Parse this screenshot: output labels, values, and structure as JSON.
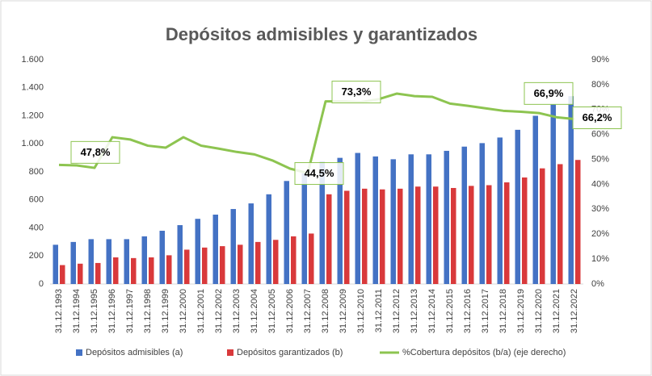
{
  "chart_data": {
    "type": "bar-line",
    "title": "Depósitos admisibles y garantizados",
    "categories": [
      "31.12.1993",
      "31.12.1994",
      "31.12.1995",
      "31.12.1996",
      "31.12.1997",
      "31.12.1998",
      "31.12.1999",
      "31.12.2000",
      "31.12.2001",
      "31.12.2002",
      "31.12.2003",
      "31.12.2004",
      "31.12.2005",
      "31.12.2006",
      "31.12.2007",
      "31.12.2008",
      "31.12.2009",
      "31.12.2010",
      "31.12.2011",
      "31.12.2012",
      "31.12.2013",
      "31.12.2014",
      "31.12.2015",
      "31.12.2016",
      "31.12.2017",
      "31.12.2018",
      "31.12.2019",
      "31.12.2020",
      "31.12.2021",
      "31.12.2022"
    ],
    "series": [
      {
        "name": "Depósitos admisibles (a)",
        "color": "#4472c4",
        "type": "bar",
        "values": [
          280,
          300,
          320,
          320,
          320,
          340,
          380,
          420,
          465,
          495,
          535,
          575,
          640,
          735,
          790,
          870,
          900,
          935,
          910,
          890,
          925,
          925,
          950,
          980,
          1005,
          1045,
          1100,
          1200,
          1280,
          1340
        ]
      },
      {
        "name": "Depósitos garantizados (b)",
        "color": "#d9393b",
        "type": "bar",
        "values": [
          135,
          145,
          150,
          190,
          185,
          190,
          205,
          245,
          260,
          270,
          280,
          300,
          315,
          340,
          360,
          640,
          665,
          680,
          675,
          680,
          695,
          695,
          685,
          700,
          705,
          725,
          760,
          825,
          855,
          885
        ]
      },
      {
        "name": "%Cobertura depósitos (b/a) (eje derecho)",
        "color": "#8dc450",
        "type": "line",
        "axis": "y2",
        "values": [
          47.8,
          47.6,
          46.6,
          58.9,
          58.0,
          55.5,
          54.7,
          58.9,
          55.5,
          54.3,
          53.0,
          52.0,
          49.6,
          46.3,
          44.5,
          73.3,
          73.3,
          73.0,
          74.2,
          76.4,
          75.4,
          75.1,
          72.4,
          71.5,
          70.5,
          69.5,
          69.1,
          68.6,
          66.9,
          66.2
        ],
        "value_labels": [
          "47,8%",
          null,
          null,
          null,
          null,
          null,
          null,
          null,
          null,
          null,
          null,
          null,
          null,
          null,
          "44,5%",
          "73,3%",
          null,
          null,
          null,
          null,
          null,
          null,
          null,
          null,
          null,
          null,
          null,
          null,
          "66,9%",
          "66,2%"
        ]
      }
    ],
    "ylim": [
      0,
      1600
    ],
    "yticks": [
      0,
      200,
      400,
      600,
      800,
      {
        "value": 1000,
        "label": "1.000"
      },
      {
        "value": 1200,
        "label": "1.200"
      },
      {
        "value": 1400,
        "label": "1.400"
      },
      {
        "value": 1600,
        "label": "1.600"
      }
    ],
    "y2lim": [
      0,
      90
    ],
    "y2ticks": [
      {
        "value": 0,
        "label": "0%"
      },
      {
        "value": 10,
        "label": "10%"
      },
      {
        "value": 20,
        "label": "20%"
      },
      {
        "value": 30,
        "label": "30%"
      },
      {
        "value": 40,
        "label": "40%"
      },
      {
        "value": 50,
        "label": "50%"
      },
      {
        "value": 60,
        "label": "60%"
      },
      {
        "value": 70,
        "label": "70%"
      },
      {
        "value": 80,
        "label": "80%"
      },
      {
        "value": 90,
        "label": "90%"
      }
    ],
    "grid": false,
    "legend": "bottom"
  }
}
